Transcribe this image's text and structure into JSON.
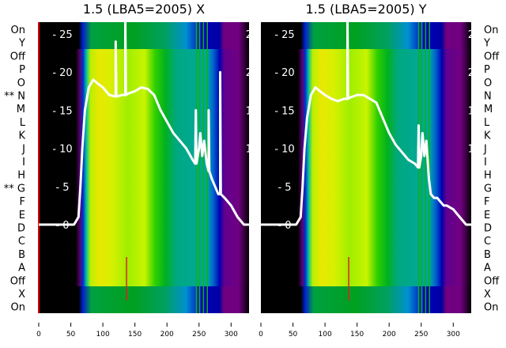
{
  "chart_data": [
    {
      "type": "heatmap",
      "title": "1.5 (LBA5=2005) X",
      "polarization": "X",
      "row_labels": [
        "On",
        "Y",
        "Off",
        "P",
        "O",
        "N",
        "M",
        "L",
        "K",
        "J",
        "I",
        "H",
        "G",
        "F",
        "E",
        "D",
        "C",
        "B",
        "A",
        "Off",
        "X",
        "On"
      ],
      "row_marks": {
        "N": "**",
        "G": "**"
      },
      "xticks": [
        0,
        50,
        100,
        150,
        200,
        250,
        300
      ],
      "xlim": [
        0,
        328
      ],
      "yticks": [
        0,
        5,
        10,
        15,
        20,
        25
      ],
      "ylim": [
        -23,
        27
      ],
      "series": [
        {
          "name": "spectrum",
          "x": [
            0,
            55,
            62,
            65,
            68,
            72,
            78,
            85,
            92,
            100,
            110,
            120,
            120,
            121,
            130,
            135,
            135,
            136,
            140,
            150,
            160,
            170,
            180,
            190,
            200,
            210,
            220,
            230,
            240,
            244,
            245,
            246,
            250,
            252,
            255,
            258,
            262,
            265,
            265,
            266,
            270,
            275,
            280,
            283,
            283,
            284,
            290,
            300,
            310,
            320,
            328
          ],
          "y": [
            0,
            0,
            1,
            5,
            10,
            15,
            18,
            19,
            18.5,
            18,
            17,
            16.8,
            24,
            16.8,
            17,
            17,
            27,
            17,
            17.2,
            17.5,
            18,
            17.8,
            17,
            15,
            13.5,
            12,
            11,
            10,
            8.5,
            8,
            15,
            8,
            10,
            12,
            9,
            11,
            8,
            7,
            15,
            7,
            6,
            5,
            4,
            4,
            20,
            4,
            3.5,
            2.5,
            1,
            0,
            0
          ]
        }
      ]
    },
    {
      "type": "heatmap",
      "title": "1.5 (LBA5=2005) Y",
      "polarization": "Y",
      "row_labels": [
        "On",
        "Y",
        "Off",
        "P",
        "O",
        "N",
        "M",
        "L",
        "K",
        "J",
        "I",
        "H",
        "G",
        "F",
        "E",
        "D",
        "C",
        "B",
        "A",
        "Off",
        "X",
        "On"
      ],
      "xticks": [
        0,
        50,
        100,
        150,
        200,
        250,
        300
      ],
      "xlim": [
        0,
        328
      ],
      "yticks": [
        0,
        5,
        10,
        15,
        20,
        25
      ],
      "ylim": [
        -23,
        27
      ],
      "series": [
        {
          "name": "spectrum",
          "x": [
            0,
            55,
            62,
            65,
            68,
            72,
            78,
            85,
            92,
            100,
            110,
            120,
            130,
            135,
            135,
            136,
            140,
            150,
            160,
            170,
            180,
            190,
            200,
            210,
            220,
            230,
            240,
            245,
            246,
            247,
            250,
            252,
            255,
            258,
            262,
            265,
            270,
            275,
            280,
            285,
            290,
            300,
            310,
            320,
            328
          ],
          "y": [
            0,
            0,
            1,
            5,
            10,
            14,
            17,
            18,
            17.5,
            17,
            16.5,
            16.2,
            16.5,
            16.5,
            27,
            16.5,
            16.7,
            17,
            17,
            16.5,
            16,
            14,
            12,
            10.5,
            9.5,
            8.5,
            8,
            7.5,
            13,
            7.5,
            9,
            12,
            9,
            11,
            6,
            4,
            3.5,
            3.5,
            3,
            2.5,
            2.5,
            2,
            1,
            0,
            0
          ]
        }
      ]
    }
  ]
}
